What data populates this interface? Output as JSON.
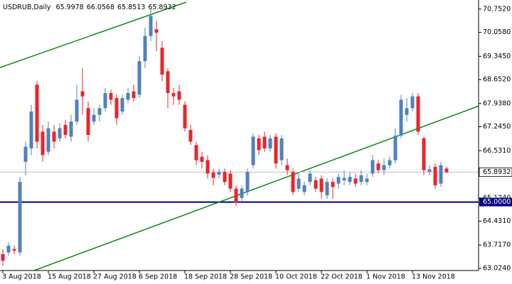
{
  "chart_data": {
    "type": "candlestick",
    "title": "USDRUB,Daily",
    "categories": [
      "3 Aug 2018",
      null,
      null,
      null,
      null,
      null,
      null,
      null,
      "15 Aug 2018",
      null,
      null,
      null,
      null,
      null,
      null,
      null,
      "27 Aug 2018",
      null,
      null,
      null,
      null,
      null,
      null,
      null,
      "6 Sep 2018",
      null,
      null,
      null,
      null,
      null,
      null,
      null,
      "18 Sep 2018",
      null,
      null,
      null,
      null,
      null,
      null,
      null,
      "28 Sep 2018",
      null,
      null,
      null,
      null,
      null,
      null,
      null,
      "10 Oct 2018",
      null,
      null,
      null,
      null,
      null,
      null,
      null,
      "22 Oct 2018",
      null,
      null,
      null,
      null,
      null,
      null,
      null,
      "1 Nov 2018",
      null,
      null,
      null,
      null,
      null,
      null,
      null,
      "13 Nov 2018",
      null,
      null,
      null,
      null,
      null,
      null
    ],
    "open": [
      63.45,
      63.5,
      63.6,
      63.5,
      66.2,
      66.6,
      68.5,
      67.1,
      66.5,
      67.1,
      66.9,
      67.3,
      66.95,
      67.4,
      68.3,
      67.8,
      67.4,
      67.6,
      67.8,
      68.25,
      68.1,
      67.7,
      68.05,
      68.3,
      68.2,
      69.2,
      69.95,
      70.15,
      69.6,
      68.9,
      68.25,
      68.3,
      67.9,
      67.15,
      66.7,
      66.35,
      66.25,
      65.88,
      65.82,
      65.9,
      65.85,
      65.4,
      65.12,
      65.3,
      66.1,
      66.9,
      66.95,
      66.6,
      66.95,
      66.25,
      66.1,
      65.9,
      65.4,
      65.3,
      65.6,
      65.65,
      65.7,
      65.2,
      65.6,
      65.55,
      65.65,
      65.6,
      65.7,
      65.6,
      65.6,
      65.85,
      66.15,
      65.95,
      66.1,
      66.25,
      66.98,
      67.6,
      67.8,
      68.15,
      66.9,
      65.9,
      66.05,
      65.55,
      65.9978
    ],
    "high": [
      63.6,
      63.8,
      63.7,
      65.75,
      66.8,
      67.9,
      68.6,
      67.3,
      67.4,
      67.3,
      67.35,
      67.45,
      67.6,
      68.5,
      69.0,
      68.0,
      67.8,
      67.9,
      68.4,
      68.35,
      68.2,
      68.2,
      68.4,
      68.5,
      69.35,
      70.2,
      70.75,
      70.4,
      69.8,
      69.0,
      68.4,
      68.5,
      68.0,
      67.3,
      66.8,
      66.5,
      66.4,
      66.0,
      66.0,
      66.0,
      65.95,
      65.5,
      65.5,
      66.0,
      67.05,
      67.0,
      67.1,
      67.0,
      67.05,
      67.0,
      66.3,
      66.0,
      65.85,
      65.6,
      65.95,
      65.75,
      65.8,
      65.7,
      65.7,
      65.85,
      65.95,
      65.9,
      65.85,
      65.95,
      65.85,
      66.4,
      66.25,
      66.3,
      66.35,
      67.2,
      68.2,
      68.1,
      68.25,
      68.25,
      66.95,
      66.1,
      66.15,
      66.2,
      66.0568
    ],
    "low": [
      63.1,
      63.4,
      63.45,
      63.4,
      65.8,
      66.4,
      66.6,
      66.2,
      66.4,
      66.6,
      66.8,
      66.9,
      66.8,
      67.3,
      67.6,
      66.8,
      67.3,
      67.4,
      67.7,
      67.9,
      67.3,
      67.6,
      67.95,
      68.0,
      68.1,
      69.0,
      69.8,
      69.5,
      68.6,
      67.8,
      67.9,
      67.9,
      67.1,
      66.7,
      66.1,
      66.0,
      65.7,
      65.5,
      65.7,
      65.5,
      65.3,
      64.88,
      65.0,
      65.2,
      66.0,
      66.4,
      66.5,
      66.5,
      66.0,
      66.1,
      65.8,
      65.2,
      65.3,
      65.2,
      65.5,
      65.3,
      65.1,
      65.1,
      65.1,
      65.4,
      65.5,
      65.5,
      65.45,
      65.5,
      65.5,
      65.75,
      65.85,
      65.8,
      66.0,
      66.15,
      66.9,
      67.4,
      67.7,
      67.0,
      65.8,
      65.8,
      65.4,
      65.45,
      65.8513
    ],
    "close": [
      63.25,
      63.7,
      63.55,
      65.6,
      66.65,
      67.7,
      66.8,
      66.4,
      67.2,
      66.8,
      67.2,
      67.0,
      67.4,
      68.05,
      68.15,
      67.0,
      67.6,
      67.8,
      68.25,
      68.05,
      67.5,
      68.1,
      68.25,
      68.1,
      69.2,
      69.95,
      70.55,
      70.05,
      68.8,
      68.25,
      68.15,
      68.05,
      67.2,
      66.8,
      66.25,
      66.2,
      65.85,
      65.72,
      65.9,
      65.6,
      65.4,
      64.98,
      65.4,
      65.9,
      66.95,
      66.55,
      66.6,
      66.9,
      66.15,
      66.9,
      65.95,
      65.3,
      65.7,
      65.5,
      65.85,
      65.4,
      65.3,
      65.6,
      65.45,
      65.75,
      65.72,
      65.75,
      65.55,
      65.8,
      65.7,
      66.25,
      65.95,
      66.1,
      66.25,
      66.98,
      68.05,
      67.8,
      68.15,
      67.1,
      65.95,
      65.98,
      65.5,
      66.1,
      65.8932
    ],
    "up_color": "#4f81bd",
    "down_color": "#e8262b",
    "ylim": [
      62.96,
      70.96
    ],
    "yticks": [
      {
        "value": 70.752,
        "label": "70.7520"
      },
      {
        "value": 70.058,
        "label": "70.0580"
      },
      {
        "value": 69.345,
        "label": "69.3450"
      },
      {
        "value": 68.652,
        "label": "68.6520"
      },
      {
        "value": 67.938,
        "label": "67.9380"
      },
      {
        "value": 67.245,
        "label": "67.2450"
      },
      {
        "value": 66.531,
        "label": "66.5310"
      },
      {
        "value": 65.124,
        "label": "65.1240"
      },
      {
        "value": 64.431,
        "label": "64.4310"
      },
      {
        "value": 63.717,
        "label": "63.7170"
      },
      {
        "value": 63.024,
        "label": "63.0240"
      }
    ],
    "grid": false,
    "price_line_color": "#c0c0c0",
    "hlines": [
      {
        "value": 65,
        "label": "65.0000",
        "color": "#000080"
      }
    ],
    "trendlines": [
      {
        "x": [
          -0.5,
          32.25
        ],
        "y": [
          69.01,
          70.96
        ],
        "color": "#138a13"
      },
      {
        "x": [
          5.5,
          83.6
        ],
        "y": [
          62.96,
          67.86
        ],
        "color": "#138a13"
      }
    ]
  }
}
